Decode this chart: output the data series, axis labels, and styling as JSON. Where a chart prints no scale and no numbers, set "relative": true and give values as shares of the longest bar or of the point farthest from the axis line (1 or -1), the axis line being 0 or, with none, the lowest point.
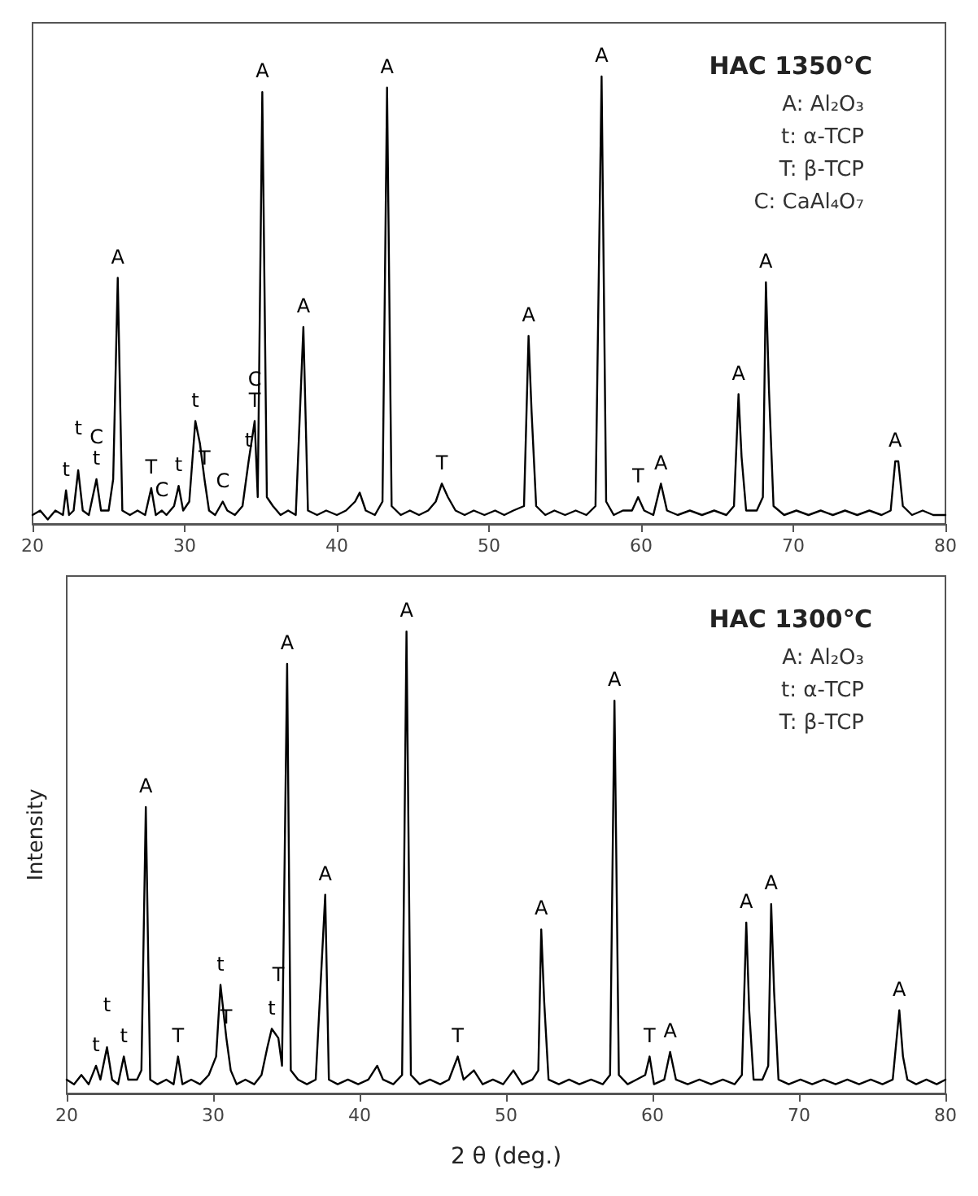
{
  "chart_data": [
    {
      "type": "line",
      "title": "HAC 1350℃",
      "relative": true,
      "xlim": [
        20,
        80
      ],
      "xticks": [
        20,
        30,
        40,
        50,
        60,
        70,
        80
      ],
      "grid": false,
      "marker": "none",
      "series": [
        {
          "color": "#000000",
          "x": [
            20.0,
            20.5,
            21.0,
            21.5,
            22.0,
            22.2,
            22.4,
            22.7,
            23.0,
            23.3,
            23.7,
            24.2,
            24.5,
            25.0,
            25.3,
            25.6,
            25.9,
            26.4,
            26.9,
            27.4,
            27.8,
            28.1,
            28.5,
            28.8,
            29.3,
            29.6,
            29.9,
            30.3,
            30.7,
            31.0,
            31.3,
            31.6,
            32.0,
            32.5,
            32.8,
            33.3,
            33.8,
            34.2,
            34.6,
            34.8,
            35.1,
            35.4,
            35.8,
            36.3,
            36.8,
            37.3,
            37.8,
            38.1,
            38.7,
            39.3,
            40.0,
            40.6,
            41.2,
            41.5,
            41.9,
            42.5,
            43.0,
            43.3,
            43.6,
            44.2,
            44.8,
            45.4,
            46.0,
            46.5,
            46.9,
            47.3,
            47.8,
            48.4,
            49.0,
            49.7,
            50.4,
            51.0,
            51.6,
            52.3,
            52.6,
            52.8,
            53.1,
            53.7,
            54.3,
            55.0,
            55.7,
            56.4,
            57.0,
            57.4,
            57.7,
            58.2,
            58.8,
            59.4,
            59.8,
            60.2,
            60.8,
            61.3,
            61.7,
            62.4,
            63.2,
            64.0,
            64.8,
            65.6,
            66.1,
            66.4,
            66.6,
            66.9,
            67.6,
            68.0,
            68.2,
            68.4,
            68.7,
            69.4,
            70.2,
            71.0,
            71.8,
            72.6,
            73.4,
            74.2,
            75.0,
            75.8,
            76.4,
            76.7,
            76.9,
            77.2,
            77.8,
            78.5,
            79.2,
            80.0
          ],
          "values": [
            0.02,
            0.03,
            0.01,
            0.03,
            0.02,
            0.075,
            0.02,
            0.03,
            0.12,
            0.03,
            0.02,
            0.1,
            0.03,
            0.03,
            0.1,
            0.55,
            0.03,
            0.02,
            0.03,
            0.02,
            0.08,
            0.02,
            0.03,
            0.02,
            0.04,
            0.085,
            0.03,
            0.05,
            0.23,
            0.18,
            0.1,
            0.03,
            0.02,
            0.05,
            0.03,
            0.02,
            0.04,
            0.14,
            0.23,
            0.06,
            0.965,
            0.06,
            0.04,
            0.02,
            0.03,
            0.02,
            0.44,
            0.03,
            0.02,
            0.03,
            0.02,
            0.03,
            0.05,
            0.07,
            0.03,
            0.02,
            0.05,
            0.975,
            0.04,
            0.02,
            0.03,
            0.02,
            0.03,
            0.05,
            0.09,
            0.06,
            0.03,
            0.02,
            0.03,
            0.02,
            0.03,
            0.02,
            0.03,
            0.04,
            0.42,
            0.25,
            0.04,
            0.02,
            0.03,
            0.02,
            0.03,
            0.02,
            0.04,
            1.0,
            0.05,
            0.02,
            0.03,
            0.03,
            0.06,
            0.03,
            0.02,
            0.09,
            0.03,
            0.02,
            0.03,
            0.02,
            0.03,
            0.02,
            0.04,
            0.29,
            0.15,
            0.03,
            0.03,
            0.06,
            0.54,
            0.3,
            0.04,
            0.02,
            0.03,
            0.02,
            0.03,
            0.02,
            0.03,
            0.02,
            0.03,
            0.02,
            0.03,
            0.14,
            0.14,
            0.04,
            0.02,
            0.03,
            0.02,
            0.02
          ]
        }
      ],
      "annotations": [
        "A: Al₂O₃",
        "t: α-TCP",
        "T: β-TCP",
        "C: CaAl₄O₇",
        {
          "text": "t",
          "x": 22.2,
          "y": 0.075
        },
        {
          "text": "t",
          "x": 23.0,
          "y": 0.12
        },
        {
          "text": "t",
          "x": 24.2,
          "y": 0.1
        },
        {
          "text": "C",
          "x": 24.2,
          "y": 0.1
        },
        {
          "text": "A",
          "x": 25.6,
          "y": 0.55
        },
        {
          "text": "T",
          "x": 27.8,
          "y": 0.08
        },
        {
          "text": "C",
          "x": 28.5,
          "y": 0.03
        },
        {
          "text": "t",
          "x": 29.6,
          "y": 0.085
        },
        {
          "text": "t",
          "x": 30.7,
          "y": 0.23
        },
        {
          "text": "T",
          "x": 31.3,
          "y": 0.1
        },
        {
          "text": "C",
          "x": 32.5,
          "y": 0.05
        },
        {
          "text": "t",
          "x": 34.2,
          "y": 0.14
        },
        {
          "text": "T",
          "x": 34.6,
          "y": 0.23
        },
        {
          "text": "C",
          "x": 34.6,
          "y": 0.23
        },
        {
          "text": "A",
          "x": 35.1,
          "y": 0.965
        },
        {
          "text": "A",
          "x": 37.8,
          "y": 0.44
        },
        {
          "text": "A",
          "x": 43.3,
          "y": 0.975
        },
        {
          "text": "T",
          "x": 46.9,
          "y": 0.09
        },
        {
          "text": "A",
          "x": 52.6,
          "y": 0.42
        },
        {
          "text": "A",
          "x": 57.4,
          "y": 1.0
        },
        {
          "text": "T",
          "x": 59.8,
          "y": 0.06
        },
        {
          "text": "A",
          "x": 61.3,
          "y": 0.09
        },
        {
          "text": "A",
          "x": 66.4,
          "y": 0.29
        },
        {
          "text": "A",
          "x": 68.2,
          "y": 0.54
        },
        {
          "text": "A",
          "x": 76.7,
          "y": 0.14
        }
      ]
    },
    {
      "type": "line",
      "title": "HAC 1300℃",
      "xlabel": "2 θ (deg.)",
      "ylabel": "Intensity",
      "relative": true,
      "xlim": [
        20,
        80
      ],
      "xticks": [
        20,
        30,
        40,
        50,
        60,
        70,
        80
      ],
      "grid": false,
      "marker": "none",
      "series": [
        {
          "color": "#000000",
          "x": [
            20.0,
            20.5,
            21.0,
            21.5,
            22.0,
            22.3,
            22.75,
            23.1,
            23.5,
            23.9,
            24.2,
            24.8,
            25.1,
            25.4,
            25.7,
            26.2,
            26.8,
            27.3,
            27.6,
            27.9,
            28.5,
            29.1,
            29.7,
            30.2,
            30.5,
            30.9,
            31.2,
            31.6,
            32.2,
            32.8,
            33.3,
            33.7,
            34.0,
            34.45,
            34.7,
            35.05,
            35.3,
            35.8,
            36.4,
            37.0,
            37.65,
            37.9,
            38.5,
            39.2,
            39.9,
            40.6,
            41.2,
            41.6,
            42.3,
            42.9,
            43.2,
            43.5,
            44.1,
            44.8,
            45.5,
            46.1,
            46.7,
            47.1,
            47.8,
            48.4,
            49.1,
            49.8,
            50.5,
            51.1,
            51.8,
            52.2,
            52.4,
            52.6,
            52.9,
            53.6,
            54.3,
            55.0,
            55.8,
            56.6,
            57.1,
            57.4,
            57.7,
            58.3,
            58.9,
            59.5,
            59.8,
            60.1,
            60.8,
            61.2,
            61.6,
            62.4,
            63.2,
            64.0,
            64.8,
            65.6,
            66.1,
            66.4,
            66.6,
            66.9,
            67.5,
            67.9,
            68.1,
            68.3,
            68.6,
            69.3,
            70.1,
            70.9,
            71.7,
            72.5,
            73.3,
            74.1,
            74.9,
            75.7,
            76.4,
            76.85,
            77.1,
            77.4,
            78.0,
            78.7,
            79.4,
            80.0
          ],
          "values": [
            0.03,
            0.02,
            0.04,
            0.02,
            0.06,
            0.03,
            0.1,
            0.03,
            0.02,
            0.08,
            0.03,
            0.03,
            0.05,
            0.62,
            0.03,
            0.02,
            0.03,
            0.02,
            0.08,
            0.02,
            0.03,
            0.02,
            0.04,
            0.08,
            0.235,
            0.12,
            0.05,
            0.02,
            0.03,
            0.02,
            0.04,
            0.1,
            0.14,
            0.12,
            0.06,
            0.93,
            0.05,
            0.03,
            0.02,
            0.03,
            0.43,
            0.03,
            0.02,
            0.03,
            0.02,
            0.03,
            0.06,
            0.03,
            0.02,
            0.04,
            1.0,
            0.04,
            0.02,
            0.03,
            0.02,
            0.03,
            0.08,
            0.03,
            0.05,
            0.02,
            0.03,
            0.02,
            0.05,
            0.02,
            0.03,
            0.05,
            0.355,
            0.2,
            0.03,
            0.02,
            0.03,
            0.02,
            0.03,
            0.02,
            0.04,
            0.85,
            0.04,
            0.02,
            0.03,
            0.04,
            0.08,
            0.02,
            0.03,
            0.09,
            0.03,
            0.02,
            0.03,
            0.02,
            0.03,
            0.02,
            0.04,
            0.37,
            0.18,
            0.03,
            0.03,
            0.06,
            0.41,
            0.22,
            0.03,
            0.02,
            0.03,
            0.02,
            0.03,
            0.02,
            0.03,
            0.02,
            0.03,
            0.02,
            0.03,
            0.18,
            0.08,
            0.03,
            0.02,
            0.03,
            0.02,
            0.03
          ]
        }
      ],
      "annotations": [
        "A: Al₂O₃",
        "t: α-TCP",
        "T: β-TCP",
        {
          "text": "t",
          "x": 22.0,
          "y": 0.06
        },
        {
          "text": "t",
          "x": 22.75,
          "y": 0.1
        },
        {
          "text": "t",
          "x": 23.9,
          "y": 0.08
        },
        {
          "text": "A",
          "x": 25.4,
          "y": 0.62
        },
        {
          "text": "T",
          "x": 27.6,
          "y": 0.08
        },
        {
          "text": "t",
          "x": 30.5,
          "y": 0.235
        },
        {
          "text": "T",
          "x": 30.9,
          "y": 0.12
        },
        {
          "text": "t",
          "x": 34.0,
          "y": 0.14
        },
        {
          "text": "T",
          "x": 34.45,
          "y": 0.12
        },
        {
          "text": "A",
          "x": 35.05,
          "y": 0.93
        },
        {
          "text": "A",
          "x": 37.65,
          "y": 0.43
        },
        {
          "text": "A",
          "x": 43.2,
          "y": 1.0
        },
        {
          "text": "T",
          "x": 46.7,
          "y": 0.08
        },
        {
          "text": "A",
          "x": 52.4,
          "y": 0.355
        },
        {
          "text": "A",
          "x": 57.4,
          "y": 0.85
        },
        {
          "text": "T",
          "x": 59.8,
          "y": 0.08
        },
        {
          "text": "A",
          "x": 61.2,
          "y": 0.09
        },
        {
          "text": "A",
          "x": 66.4,
          "y": 0.37
        },
        {
          "text": "A",
          "x": 68.1,
          "y": 0.41
        },
        {
          "text": "A",
          "x": 76.85,
          "y": 0.18
        }
      ]
    }
  ]
}
